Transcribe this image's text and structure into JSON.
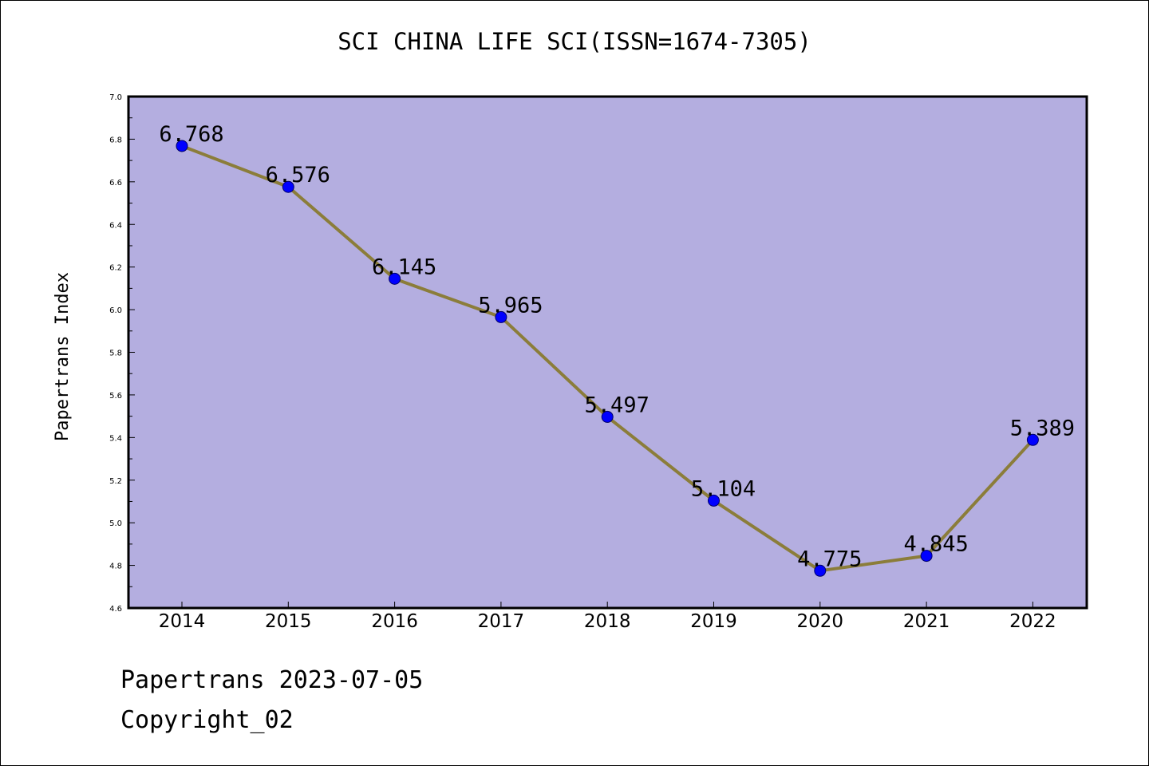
{
  "chart_data": {
    "type": "line",
    "title": "SCI CHINA LIFE SCI(ISSN=1674-7305)",
    "xlabel": "",
    "ylabel": "Papertrans Index",
    "categories": [
      "2014",
      "2015",
      "2016",
      "2017",
      "2018",
      "2019",
      "2020",
      "2021",
      "2022"
    ],
    "values": [
      6.768,
      6.576,
      6.145,
      5.965,
      5.497,
      5.104,
      4.775,
      4.845,
      5.389
    ],
    "data_labels": [
      "6.768",
      "6.576",
      "6.145",
      "5.965",
      "5.497",
      "5.104",
      "4.775",
      "4.845",
      "5.389"
    ],
    "ylim": [
      4.6,
      7.0
    ],
    "yticks": [
      "4.6",
      "4.8",
      "5.0",
      "5.2",
      "5.4",
      "5.6",
      "5.8",
      "6.0",
      "6.2",
      "6.4",
      "6.6",
      "6.8",
      "7.0"
    ],
    "grid": false,
    "colors": {
      "plot_background": "#b4aee0",
      "line": "#8b7d3a",
      "marker": "#0000ff"
    }
  },
  "footer": {
    "date_text": "Papertrans 2023-07-05",
    "copyright_text": "Copyright_02"
  }
}
